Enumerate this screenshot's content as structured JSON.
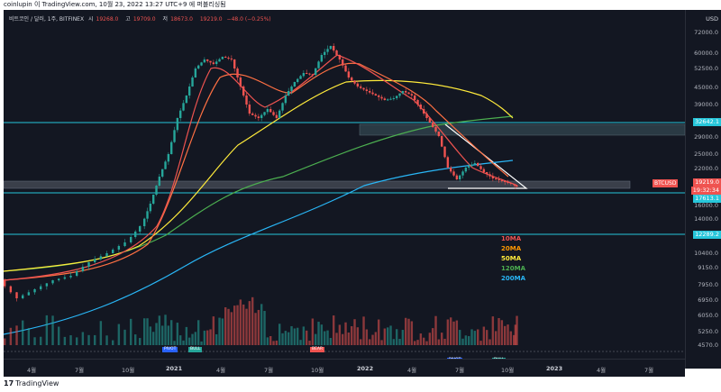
{
  "header": {
    "author": "coinlupin",
    "via": "이 TradingView.com,",
    "datetime": "10월 23, 2022 13:27 UTC+9",
    "timezone_note": "에 퍼블리싱됨"
  },
  "legend": {
    "symbol": "비트코인 / 달러, 1주, BITFINEX",
    "open_label": "시",
    "open": "19268.0",
    "high_label": "고",
    "high": "19709.0",
    "low_label": "저",
    "low": "18673.0",
    "close": "19219.0",
    "change": "−48.0 (−0.25%)"
  },
  "y_axis": {
    "currency": "USD",
    "ticks": [
      "72000.0",
      "60000.0",
      "52500.0",
      "45000.0",
      "39000.0",
      "32642.1",
      "29000.0",
      "25000.0",
      "22000.0",
      "19219.0",
      "17613.1",
      "16000.0",
      "14000.0",
      "12289.2",
      "10400.0",
      "9150.0",
      "7950.0",
      "6950.0",
      "6050.0",
      "5250.0",
      "4570.0"
    ]
  },
  "price_tags": {
    "current": "19219.0",
    "countdown": "19:32:34",
    "level_a": "32642.1",
    "level_b": "17613.1",
    "level_c": "12289.2",
    "symbol_tag": "BTCUSD"
  },
  "x_axis": {
    "ticks": [
      "4월",
      "7월",
      "10월",
      "2021",
      "4월",
      "7월",
      "10월",
      "2022",
      "4월",
      "7월",
      "10월",
      "2023",
      "4월",
      "7월"
    ]
  },
  "ma_legend": [
    {
      "label": "10MA",
      "color": "#ef5350"
    },
    {
      "label": "20MA",
      "color": "#ff9800"
    },
    {
      "label": "50MA",
      "color": "#ffeb3b"
    },
    {
      "label": "120MA",
      "color": "#4caf50"
    },
    {
      "label": "200MA",
      "color": "#29b6f6"
    }
  ],
  "signals": [
    "PIVOT",
    "BEAR",
    "BULL",
    "PIVOT",
    "BULL"
  ],
  "footer": {
    "brand": "TradingView"
  },
  "colors": {
    "background": "#131722",
    "up": "#26a69a",
    "down": "#ef5350",
    "level_line": "#26c6da"
  }
}
